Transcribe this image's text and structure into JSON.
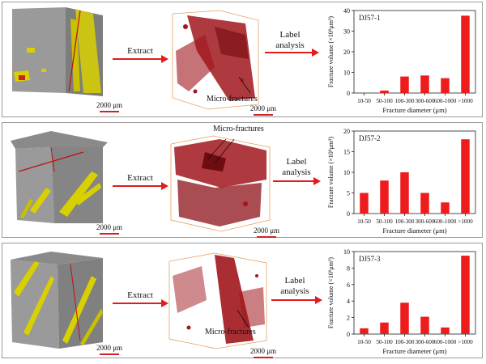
{
  "labels": {
    "extract": "Extract",
    "label_analysis_line1": "Label",
    "label_analysis_line2": "analysis",
    "micro_fractures": "Micro-fractures",
    "scale": "2000 μm"
  },
  "colors": {
    "rock": "#8c8c8c",
    "fracture_fill": "#d8d000",
    "fracture_3d": "#a0161c",
    "bar": "#ee1c1c",
    "arrow": "#e21b1b",
    "box_edge": "#e8a060"
  },
  "chart_data": [
    {
      "type": "bar",
      "title": "DJ57-1",
      "categories": [
        "10-50",
        "50-100",
        "100-300",
        "300-600",
        "600-1000",
        ">1000"
      ],
      "values": [
        0,
        1.2,
        8,
        8.5,
        7.2,
        37.5
      ],
      "xlabel": "Fracture diameter (μm)",
      "ylabel": "Fracture volume (×10⁹μm³)",
      "ylim": [
        0,
        40
      ],
      "yticks": [
        "0",
        "10",
        "20",
        "30",
        "40"
      ]
    },
    {
      "type": "bar",
      "title": "DJ57-2",
      "categories": [
        "10-50",
        "50-100",
        "100-300",
        "300-600",
        "600-1000",
        ">1000"
      ],
      "values": [
        5,
        8,
        10,
        5,
        2.7,
        18
      ],
      "xlabel": "Fracture diameter (μm)",
      "ylabel": "Fracture volume (×10⁹μm³)",
      "ylim": [
        0,
        20
      ],
      "yticks": [
        "0",
        "5",
        "10",
        "15",
        "20"
      ]
    },
    {
      "type": "bar",
      "title": "DJ57-3",
      "categories": [
        "10-50",
        "50-100",
        "100-300",
        "300-600",
        "600-1000",
        ">1000"
      ],
      "values": [
        0.7,
        1.4,
        3.8,
        2.1,
        0.8,
        9.5
      ],
      "xlabel": "Fracture diameter (μm)",
      "ylabel": "Fracture volume (×10⁹μm³)",
      "ylim": [
        0,
        10
      ],
      "yticks": [
        "0",
        "2",
        "4",
        "6",
        "8",
        "10"
      ]
    }
  ]
}
